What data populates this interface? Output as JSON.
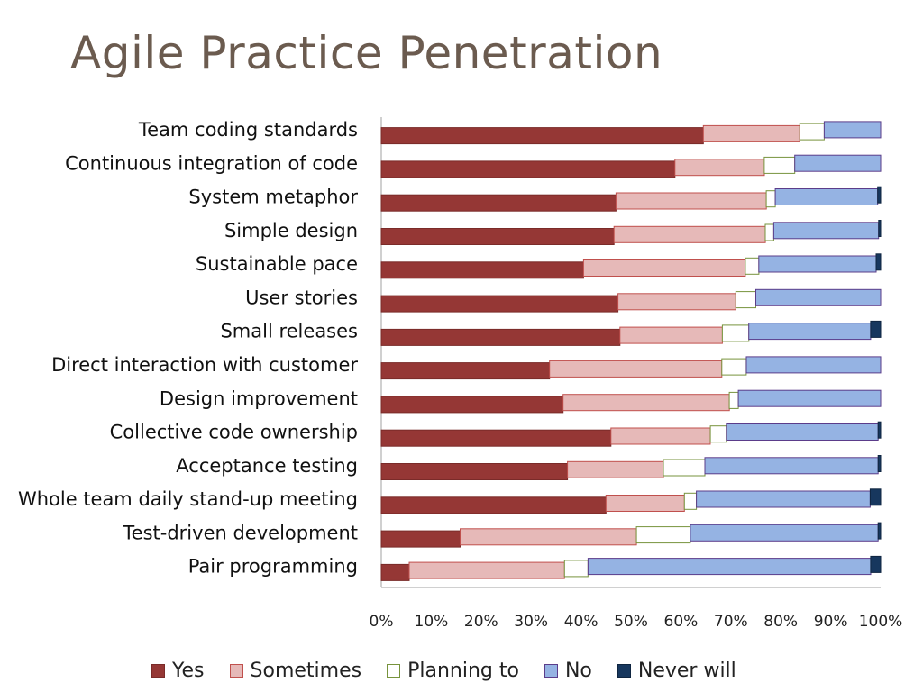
{
  "slide": {
    "title": "Agile Practice Penetration"
  },
  "colors": {
    "Yes": "#953735",
    "Sometimes": "#e6b9b8",
    "Planning to": "#ffffff",
    "No": "#95b3e3",
    "Never will": "#17375e"
  },
  "border_colors": {
    "Yes": "#7a2b29",
    "Sometimes": "#c0504d",
    "Planning to": "#77933c",
    "No": "#5b3c8a",
    "Never will": "#0f2540"
  },
  "chart_data": {
    "type": "bar",
    "orientation": "horizontal",
    "stacked": "percent",
    "categories": [
      "Team coding standards",
      "Continuous integration of code",
      "System metaphor",
      "Simple design",
      "Sustainable pace",
      "User stories",
      "Small releases",
      "Direct interaction with customer",
      "Design improvement",
      "Collective code ownership",
      "Acceptance testing",
      "Whole team daily stand-up meeting",
      "Test-driven development",
      "Pair programming"
    ],
    "series": [
      {
        "name": "Yes",
        "values": [
          64.5,
          58.8,
          47.0,
          46.6,
          40.5,
          47.4,
          47.8,
          33.7,
          36.4,
          46.0,
          37.3,
          45.0,
          15.8,
          5.6
        ]
      },
      {
        "name": "Sometimes",
        "values": [
          19.3,
          17.9,
          30.1,
          30.3,
          32.4,
          23.6,
          20.5,
          34.5,
          33.3,
          19.9,
          19.2,
          15.7,
          35.3,
          31.1
        ]
      },
      {
        "name": "Planning to",
        "values": [
          4.9,
          6.1,
          1.8,
          1.7,
          2.7,
          4.0,
          5.3,
          4.9,
          1.8,
          3.2,
          8.3,
          2.4,
          10.8,
          4.7
        ]
      },
      {
        "name": "No",
        "values": [
          11.3,
          17.2,
          20.5,
          21.0,
          23.5,
          25.0,
          24.4,
          26.9,
          28.5,
          30.4,
          34.7,
          34.8,
          37.6,
          56.6
        ]
      },
      {
        "name": "Never will",
        "values": [
          0.0,
          0.0,
          0.6,
          0.4,
          0.9,
          0.0,
          2.0,
          0.0,
          0.0,
          0.5,
          0.5,
          2.1,
          0.5,
          2.0
        ]
      }
    ],
    "xaxis": {
      "ticks": [
        "0%",
        "10%",
        "20%",
        "30%",
        "40%",
        "50%",
        "60%",
        "70%",
        "80%",
        "90%",
        "100%"
      ],
      "range": [
        0,
        100
      ]
    },
    "legend": [
      "Yes",
      "Sometimes",
      "Planning to",
      "No",
      "Never will"
    ],
    "legend_position": "bottom",
    "grid": false
  }
}
